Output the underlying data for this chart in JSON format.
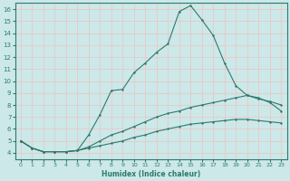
{
  "xlabel": "Humidex (Indice chaleur)",
  "xlim": [
    -0.5,
    23.5
  ],
  "ylim": [
    3.5,
    16.5
  ],
  "yticks": [
    4,
    5,
    6,
    7,
    8,
    9,
    10,
    11,
    12,
    13,
    14,
    15,
    16
  ],
  "xticks": [
    0,
    1,
    2,
    3,
    4,
    5,
    6,
    7,
    8,
    9,
    10,
    11,
    12,
    13,
    14,
    15,
    16,
    17,
    18,
    19,
    20,
    21,
    22,
    23
  ],
  "bg_color": "#cce8e8",
  "grid_color": "#e8c8c8",
  "line_color": "#2d7a6e",
  "curve1_x": [
    0,
    1,
    2,
    3,
    4,
    5,
    6,
    7,
    8,
    9,
    10,
    11,
    12,
    13,
    14,
    15,
    16,
    17,
    18,
    19,
    20,
    21,
    22,
    23
  ],
  "curve1_y": [
    5.0,
    4.4,
    4.1,
    4.1,
    4.1,
    4.2,
    5.5,
    7.2,
    9.2,
    9.3,
    10.7,
    11.5,
    12.4,
    13.1,
    15.8,
    16.3,
    15.1,
    13.8,
    11.5,
    9.6,
    8.8,
    8.6,
    8.2,
    7.5
  ],
  "curve2_x": [
    0,
    1,
    2,
    3,
    4,
    5,
    6,
    7,
    8,
    9,
    10,
    11,
    12,
    13,
    14,
    15,
    16,
    17,
    18,
    19,
    20,
    21,
    22,
    23
  ],
  "curve2_y": [
    5.0,
    4.4,
    4.1,
    4.1,
    4.1,
    4.2,
    4.5,
    5.0,
    5.5,
    5.8,
    6.2,
    6.6,
    7.0,
    7.3,
    7.5,
    7.8,
    8.0,
    8.2,
    8.4,
    8.6,
    8.8,
    8.5,
    8.3,
    8.0
  ],
  "curve3_x": [
    0,
    1,
    2,
    3,
    4,
    5,
    6,
    7,
    8,
    9,
    10,
    11,
    12,
    13,
    14,
    15,
    16,
    17,
    18,
    19,
    20,
    21,
    22,
    23
  ],
  "curve3_y": [
    5.0,
    4.4,
    4.1,
    4.1,
    4.1,
    4.2,
    4.4,
    4.6,
    4.8,
    5.0,
    5.3,
    5.5,
    5.8,
    6.0,
    6.2,
    6.4,
    6.5,
    6.6,
    6.7,
    6.8,
    6.8,
    6.7,
    6.6,
    6.5
  ]
}
